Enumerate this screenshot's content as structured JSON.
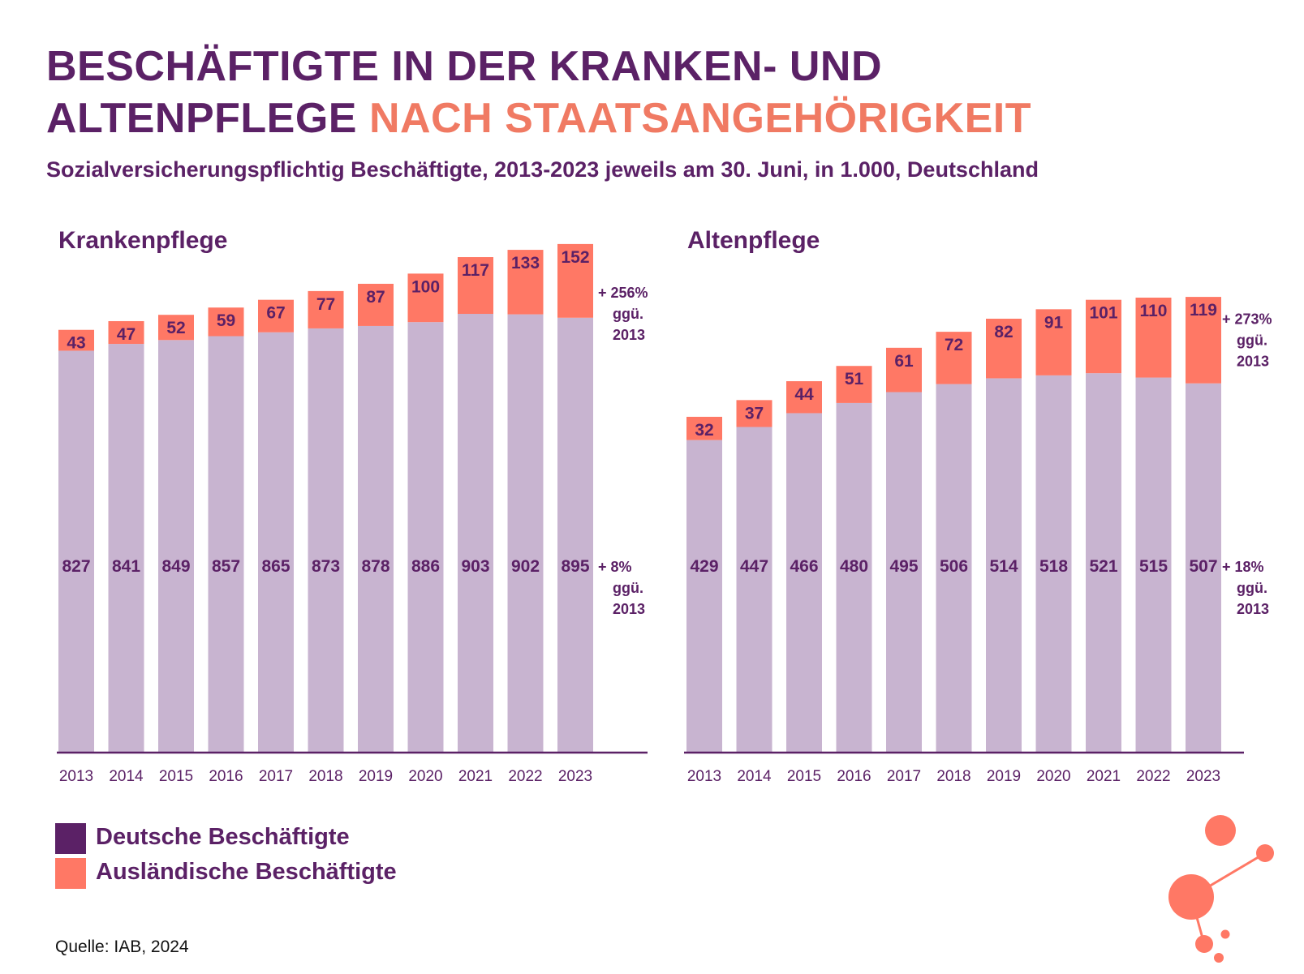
{
  "header": {
    "title_line1": "BESCHÄFTIGTE IN DER KRANKEN- UND",
    "title_line2_part1": "ALTENPFLEGE",
    "title_line2_part2": "NACH STAATSANGEHÖRIGKEIT",
    "subtitle": "Sozialversicherungspflichtig Beschäftigte, 2013-2023 jeweils am 30. Juni, in 1.000, Deutschland"
  },
  "legend": {
    "items": [
      {
        "label": "Deutsche Beschäftigte",
        "color": "#5b2166"
      },
      {
        "label": "Ausländische Beschäftigte",
        "color": "#ff7865"
      }
    ]
  },
  "source": "Quelle: IAB, 2024",
  "colors": {
    "german_bar": "#c8b4d0",
    "foreign_bar": "#ff7865",
    "text": "#5b2166",
    "title_accent": "#f07a63"
  },
  "chart_data": [
    {
      "type": "bar",
      "stacked": true,
      "title": "Krankenpflege",
      "categories": [
        "2013",
        "2014",
        "2015",
        "2016",
        "2017",
        "2018",
        "2019",
        "2020",
        "2021",
        "2022",
        "2023"
      ],
      "series": [
        {
          "name": "Deutsche Beschäftigte",
          "values": [
            827,
            841,
            849,
            857,
            865,
            873,
            878,
            886,
            903,
            902,
            895
          ]
        },
        {
          "name": "Ausländische Beschäftigte",
          "values": [
            43,
            47,
            52,
            59,
            67,
            77,
            87,
            100,
            117,
            133,
            152
          ]
        }
      ],
      "annotations": {
        "foreign": [
          "+ 256%",
          "ggü.",
          "2013"
        ],
        "german": [
          "+ 8%",
          "ggü.",
          "2013"
        ]
      },
      "grid": false
    },
    {
      "type": "bar",
      "stacked": true,
      "title": "Altenpflege",
      "categories": [
        "2013",
        "2014",
        "2015",
        "2016",
        "2017",
        "2018",
        "2019",
        "2020",
        "2021",
        "2022",
        "2023"
      ],
      "series": [
        {
          "name": "Deutsche Beschäftigte",
          "values": [
            429,
            447,
            466,
            480,
            495,
            506,
            514,
            518,
            521,
            515,
            507
          ]
        },
        {
          "name": "Ausländische Beschäftigte",
          "values": [
            32,
            37,
            44,
            51,
            61,
            72,
            82,
            91,
            101,
            110,
            119
          ]
        }
      ],
      "annotations": {
        "foreign": [
          "+ 273%",
          "ggü.",
          "2013"
        ],
        "german": [
          "+ 18%",
          "ggü.",
          "2013"
        ]
      },
      "grid": false
    }
  ]
}
